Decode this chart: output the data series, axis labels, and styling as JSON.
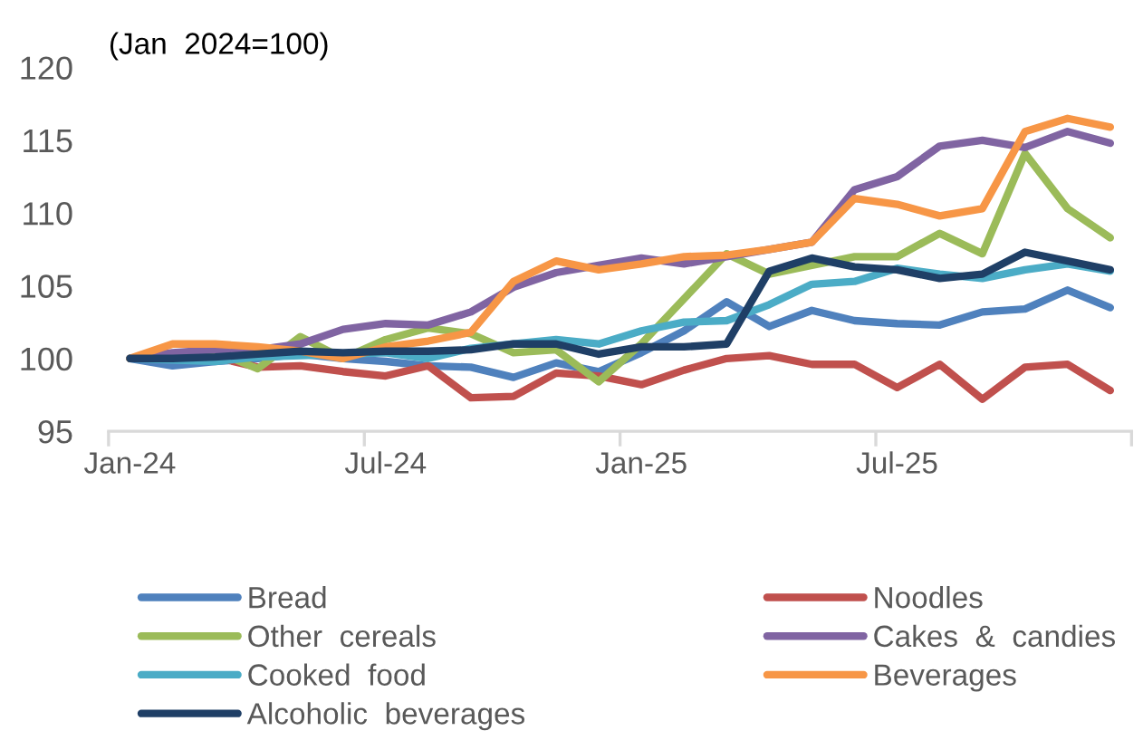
{
  "chart_data": {
    "type": "line",
    "ylabel": "(Jan  2024=100)",
    "categories": [
      "Jan-24",
      null,
      null,
      null,
      null,
      null,
      "Jul-24",
      null,
      null,
      null,
      null,
      null,
      "Jan-25",
      null,
      null,
      null,
      null,
      null,
      "Jul-25",
      null,
      null,
      null,
      null,
      null
    ],
    "ylim": [
      95,
      120
    ],
    "yticks": [
      95,
      100,
      105,
      110,
      115,
      120
    ],
    "grid": false,
    "legend": "bottom",
    "marker": "none",
    "line_style": "solid",
    "series": [
      {
        "name": "Bread",
        "color": "#4f81bd",
        "values": [
          100,
          99.5,
          99.8,
          100.0,
          100.3,
          100.0,
          99.8,
          99.5,
          99.4,
          98.7,
          99.7,
          99.1,
          100.4,
          101.9,
          103.9,
          102.2,
          103.3,
          102.6,
          102.4,
          102.3,
          103.2,
          103.4,
          104.7,
          103.5
        ]
      },
      {
        "name": "Noodles",
        "color": "#c0504d",
        "values": [
          100,
          100.3,
          100.1,
          99.4,
          99.5,
          99.1,
          98.8,
          99.5,
          97.3,
          97.4,
          99.0,
          98.8,
          98.2,
          99.2,
          100.0,
          100.2,
          99.6,
          99.6,
          98.0,
          99.6,
          97.2,
          99.4,
          99.6,
          97.8
        ]
      },
      {
        "name": "Other  cereals",
        "color": "#9bbb59",
        "values": [
          100,
          100.3,
          100.5,
          99.3,
          101.5,
          100.0,
          101.3,
          102.1,
          101.7,
          100.4,
          100.6,
          98.4,
          101.0,
          104.1,
          107.2,
          105.8,
          106.4,
          107.0,
          107.0,
          108.6,
          107.2,
          114.1,
          110.3,
          108.3
        ]
      },
      {
        "name": "Cakes  &  candies",
        "color": "#8064a2",
        "values": [
          100,
          100.4,
          100.6,
          100.6,
          101.0,
          102.0,
          102.4,
          102.3,
          103.2,
          104.9,
          105.9,
          106.4,
          106.9,
          106.5,
          107.0,
          107.5,
          108.0,
          111.6,
          112.5,
          114.6,
          115.0,
          114.5,
          115.6,
          114.8
        ]
      },
      {
        "name": "Cooked  food",
        "color": "#4bacc6",
        "values": [
          100,
          99.9,
          99.8,
          100.1,
          100.2,
          100.3,
          100.4,
          100.0,
          100.7,
          101.0,
          101.3,
          101.0,
          101.9,
          102.5,
          102.6,
          103.7,
          105.1,
          105.3,
          106.2,
          105.8,
          105.5,
          106.1,
          106.5,
          106.0
        ]
      },
      {
        "name": "Beverages",
        "color": "#f79646",
        "values": [
          100,
          101.0,
          101.0,
          100.8,
          100.5,
          100.0,
          100.8,
          101.2,
          101.8,
          105.3,
          106.7,
          106.1,
          106.5,
          107.0,
          107.1,
          107.5,
          108.0,
          111.0,
          110.6,
          109.8,
          110.3,
          115.6,
          116.5,
          115.9
        ]
      },
      {
        "name": "Alcoholic  beverages",
        "color": "#1f3f66",
        "values": [
          100,
          100.0,
          100.1,
          100.3,
          100.5,
          100.4,
          100.5,
          100.5,
          100.6,
          101.0,
          101.0,
          100.3,
          100.8,
          100.8,
          101.0,
          106.0,
          106.9,
          106.3,
          106.1,
          105.5,
          105.8,
          107.3,
          106.7,
          106.1
        ]
      }
    ]
  }
}
